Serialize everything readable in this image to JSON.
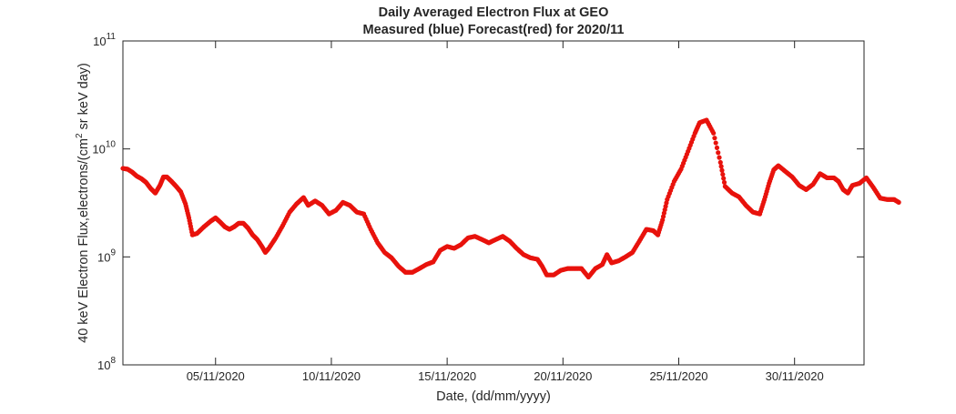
{
  "chart_data": {
    "type": "scatter",
    "title": "Daily Averaged Electron Flux at GEO",
    "subtitle": "Measured (blue) Forecast(red) for 2020/11",
    "xlabel": "Date, (dd/mm/yyyy)",
    "ylabel": "40 keV Electron Flux,electrons/(cm2 sr keV day)",
    "ylabel_parts": {
      "before": "40 keV Electron Flux,electrons/(cm",
      "sup": "2",
      "after": " sr keV day)"
    },
    "yscale": "log",
    "ylim": [
      100000000.0,
      100000000000.0
    ],
    "xlim": [
      0.0,
      32.0
    ],
    "grid": false,
    "x_unit": "day of November 2020 (days since 00:00 1 Nov 2020)",
    "y_ticks": [
      {
        "value": 100000000.0,
        "base": "10",
        "exp": "8"
      },
      {
        "value": 1000000000.0,
        "base": "10",
        "exp": "9"
      },
      {
        "value": 10000000000.0,
        "base": "10",
        "exp": "10"
      },
      {
        "value": 100000000000.0,
        "base": "10",
        "exp": "11"
      }
    ],
    "x_ticks": [
      {
        "value": 4.0,
        "label": "05/11/2020"
      },
      {
        "value": 9.0,
        "label": "10/11/2020"
      },
      {
        "value": 14.0,
        "label": "15/11/2020"
      },
      {
        "value": 19.0,
        "label": "20/11/2020"
      },
      {
        "value": 24.0,
        "label": "25/11/2020"
      },
      {
        "value": 29.0,
        "label": "30/11/2020"
      }
    ],
    "series": [
      {
        "name": "Forecast",
        "color": "#e8120c",
        "marker": "dot",
        "points": [
          [
            0.0,
            6600000000.0
          ],
          [
            0.2,
            6500000000.0
          ],
          [
            0.4,
            6100000000.0
          ],
          [
            0.6,
            5600000000.0
          ],
          [
            0.8,
            5300000000.0
          ],
          [
            1.0,
            4900000000.0
          ],
          [
            1.2,
            4300000000.0
          ],
          [
            1.4,
            3900000000.0
          ],
          [
            1.6,
            4600000000.0
          ],
          [
            1.75,
            5500000000.0
          ],
          [
            1.9,
            5500000000.0
          ],
          [
            2.1,
            5000000000.0
          ],
          [
            2.3,
            4500000000.0
          ],
          [
            2.5,
            4000000000.0
          ],
          [
            2.7,
            3100000000.0
          ],
          [
            2.85,
            2300000000.0
          ],
          [
            3.0,
            1600000000.0
          ],
          [
            3.2,
            1650000000.0
          ],
          [
            3.5,
            1900000000.0
          ],
          [
            3.8,
            2150000000.0
          ],
          [
            4.0,
            2300000000.0
          ],
          [
            4.2,
            2100000000.0
          ],
          [
            4.4,
            1900000000.0
          ],
          [
            4.6,
            1800000000.0
          ],
          [
            4.8,
            1900000000.0
          ],
          [
            5.0,
            2050000000.0
          ],
          [
            5.2,
            2050000000.0
          ],
          [
            5.4,
            1850000000.0
          ],
          [
            5.6,
            1600000000.0
          ],
          [
            5.8,
            1450000000.0
          ],
          [
            6.0,
            1250000000.0
          ],
          [
            6.15,
            1100000000.0
          ],
          [
            6.3,
            1200000000.0
          ],
          [
            6.6,
            1500000000.0
          ],
          [
            6.9,
            1950000000.0
          ],
          [
            7.2,
            2600000000.0
          ],
          [
            7.5,
            3100000000.0
          ],
          [
            7.8,
            3550000000.0
          ],
          [
            8.0,
            3000000000.0
          ],
          [
            8.3,
            3300000000.0
          ],
          [
            8.6,
            3000000000.0
          ],
          [
            8.9,
            2500000000.0
          ],
          [
            9.2,
            2700000000.0
          ],
          [
            9.5,
            3200000000.0
          ],
          [
            9.8,
            3000000000.0
          ],
          [
            10.1,
            2600000000.0
          ],
          [
            10.4,
            2500000000.0
          ],
          [
            10.7,
            1800000000.0
          ],
          [
            11.0,
            1350000000.0
          ],
          [
            11.3,
            1100000000.0
          ],
          [
            11.6,
            980000000.0
          ],
          [
            11.9,
            820000000.0
          ],
          [
            12.2,
            720000000.0
          ],
          [
            12.5,
            720000000.0
          ],
          [
            12.8,
            780000000.0
          ],
          [
            13.1,
            850000000.0
          ],
          [
            13.4,
            900000000.0
          ],
          [
            13.7,
            1150000000.0
          ],
          [
            14.0,
            1250000000.0
          ],
          [
            14.3,
            1200000000.0
          ],
          [
            14.6,
            1300000000.0
          ],
          [
            14.9,
            1500000000.0
          ],
          [
            15.2,
            1550000000.0
          ],
          [
            15.5,
            1450000000.0
          ],
          [
            15.8,
            1350000000.0
          ],
          [
            16.1,
            1450000000.0
          ],
          [
            16.4,
            1550000000.0
          ],
          [
            16.7,
            1400000000.0
          ],
          [
            17.0,
            1200000000.0
          ],
          [
            17.3,
            1050000000.0
          ],
          [
            17.6,
            980000000.0
          ],
          [
            17.9,
            950000000.0
          ],
          [
            18.1,
            820000000.0
          ],
          [
            18.3,
            680000000.0
          ],
          [
            18.6,
            680000000.0
          ],
          [
            18.9,
            750000000.0
          ],
          [
            19.2,
            780000000.0
          ],
          [
            19.5,
            780000000.0
          ],
          [
            19.8,
            780000000.0
          ],
          [
            20.1,
            650000000.0
          ],
          [
            20.4,
            780000000.0
          ],
          [
            20.7,
            850000000.0
          ],
          [
            20.9,
            1050000000.0
          ],
          [
            21.1,
            880000000.0
          ],
          [
            21.4,
            920000000.0
          ],
          [
            21.7,
            1000000000.0
          ],
          [
            22.0,
            1100000000.0
          ],
          [
            22.3,
            1400000000.0
          ],
          [
            22.6,
            1800000000.0
          ],
          [
            22.9,
            1750000000.0
          ],
          [
            23.1,
            1600000000.0
          ],
          [
            23.3,
            2200000000.0
          ],
          [
            23.5,
            3400000000.0
          ],
          [
            23.8,
            5000000000.0
          ],
          [
            24.1,
            6500000000.0
          ],
          [
            24.4,
            9500000000.0
          ],
          [
            24.7,
            14000000000.0
          ],
          [
            24.9,
            17500000000.0
          ],
          [
            25.2,
            18500000000.0
          ],
          [
            25.5,
            14000000000.0
          ],
          [
            25.8,
            7500000000.0
          ],
          [
            26.0,
            4500000000.0
          ],
          [
            26.3,
            3900000000.0
          ],
          [
            26.6,
            3600000000.0
          ],
          [
            26.9,
            3000000000.0
          ],
          [
            27.2,
            2600000000.0
          ],
          [
            27.5,
            2500000000.0
          ],
          [
            27.7,
            3400000000.0
          ],
          [
            27.9,
            4800000000.0
          ],
          [
            28.1,
            6400000000.0
          ],
          [
            28.3,
            7000000000.0
          ],
          [
            28.6,
            6200000000.0
          ],
          [
            28.9,
            5500000000.0
          ],
          [
            29.2,
            4600000000.0
          ],
          [
            29.5,
            4200000000.0
          ],
          [
            29.8,
            4700000000.0
          ],
          [
            30.1,
            5900000000.0
          ],
          [
            30.4,
            5400000000.0
          ],
          [
            30.7,
            5400000000.0
          ],
          [
            30.9,
            5000000000.0
          ],
          [
            31.1,
            4200000000.0
          ],
          [
            31.3,
            3900000000.0
          ],
          [
            31.5,
            4600000000.0
          ],
          [
            31.8,
            4800000000.0
          ],
          [
            32.1,
            5400000000.0
          ],
          [
            32.4,
            4400000000.0
          ],
          [
            32.7,
            3500000000.0
          ],
          [
            33.0,
            3400000000.0
          ],
          [
            33.3,
            3400000000.0
          ],
          [
            33.5,
            3200000000.0
          ]
        ]
      }
    ]
  }
}
